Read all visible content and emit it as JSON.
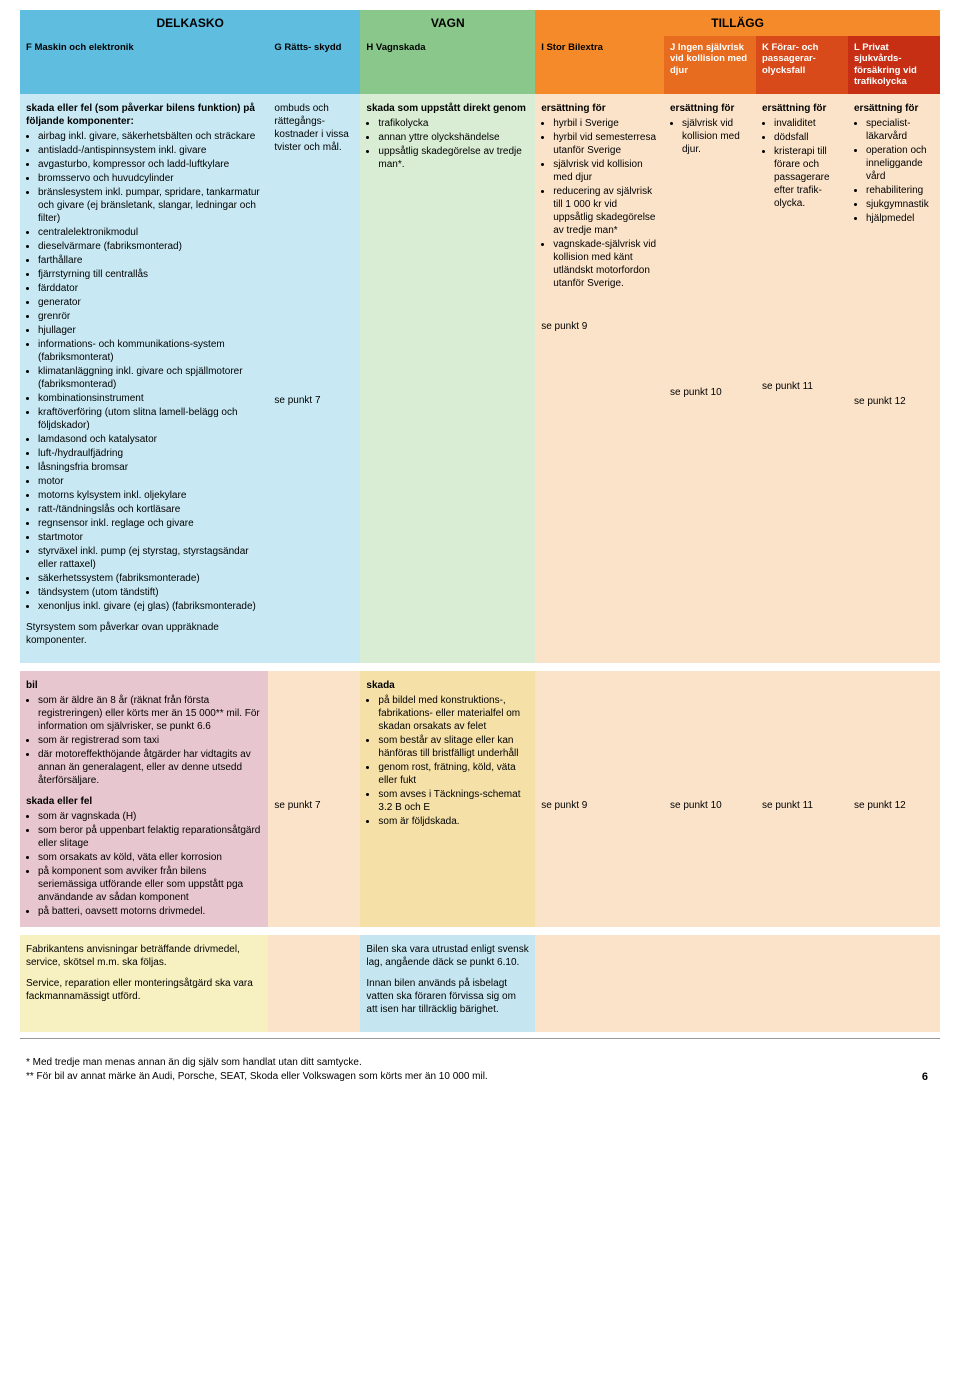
{
  "colors": {
    "delkasko_hdr": "#5fbde0",
    "delkasko_body": "#c8e9f4",
    "vagn_hdr": "#8ac78a",
    "vagn_body": "#d9ecd4",
    "tillagg_hdr": "#f58a2a",
    "tillagg_body": "#fbe3c9",
    "sub_F": "#5fbde0",
    "sub_G": "#5fbde0",
    "sub_H": "#8ac78a",
    "sub_I": "#f58a2a",
    "sub_J": "#e86c1f",
    "sub_K": "#d94a1a",
    "sub_L": "#c72f15",
    "row2_F": "#e8c6d0",
    "row2_H": "#f5e0a8",
    "row2_other": "#fbe3c9",
    "row3_F": "#f7f0c0",
    "row3_H": "#c5e6f0",
    "row3_other": "#fbe3c9",
    "sub_white_text": "#ffffff"
  },
  "topHeaders": {
    "delkasko": "DELKASKO",
    "vagn": "VAGN",
    "tillagg": "TILLÄGG"
  },
  "sub": {
    "F": "F Maskin och elektronik",
    "G": "G Rätts-\nskydd",
    "H": "H Vagnskada",
    "I": "I Stor Bilextra",
    "J": "J Ingen självrisk vid kollision med djur",
    "K": "K Förar- och passagerar-\nolycksfall",
    "L": "L Privat sjukvårds-\nförsäkring vid trafikolycka"
  },
  "row1": {
    "F": {
      "lead": "skada eller fel (som påverkar bilens funktion) på följande komponenter:",
      "items": [
        "airbag inkl. givare, säkerhetsbälten och sträckare",
        "antisladd-/antispinnsystem inkl. givare",
        "avgasturbo, kompressor och ladd-luftkylare",
        "bromsservo och huvudcylinder",
        "bränslesystem inkl. pumpar, spridare, tankarmatur och givare (ej bränsletank, slangar, ledningar och filter)",
        "centralelektronikmodul",
        "dieselvärmare (fabriksmonterad)",
        "farthållare",
        "fjärrstyrning till centrallås",
        "färddator",
        "generator",
        "grenrör",
        "hjullager",
        "informations- och kommunikations-system (fabriksmonterat)",
        "klimatanläggning inkl. givare och spjällmotorer (fabriksmonterad)",
        "kombinationsinstrument",
        "kraftöverföring (utom slitna lamell-belägg och följdskador)",
        "lamdasond och katalysator",
        "luft-/hydraulfjädring",
        "låsningsfria bromsar",
        "motor",
        "motorns kylsystem inkl. oljekylare",
        "ratt-/tändningslås och kortläsare",
        "regnsensor inkl. reglage och givare",
        "startmotor",
        "styrväxel inkl. pump (ej styrstag, styrstagsändar eller rattaxel)",
        "säkerhetssystem (fabriksmonterade)",
        "tändsystem (utom tändstift)",
        "xenonljus inkl. givare (ej glas) (fabriksmonterade)"
      ],
      "trail": "Styrsystem som påverkar ovan uppräknade komponenter."
    },
    "G": {
      "text": "ombuds och rättegångs-kostnader i vissa tvister och mål.",
      "see": "se punkt 7"
    },
    "H": {
      "lead": "skada som uppstått direkt genom",
      "items": [
        "trafikolycka",
        "annan yttre olyckshändelse",
        "uppsåtlig skadegörelse av tredje man*."
      ]
    },
    "I": {
      "lead": "ersättning för",
      "items": [
        "hyrbil i Sverige",
        "hyrbil vid semesterresa utanför Sverige",
        "självrisk vid kollision med djur",
        "reducering av självrisk till 1 000 kr vid uppsåtlig skadegörelse av tredje man*",
        "vagnskade-självrisk vid kollision med känt utländskt motorfordon utanför Sverige."
      ],
      "see": "se punkt 9"
    },
    "J": {
      "lead": "ersättning för",
      "items": [
        "självrisk vid kollision med djur."
      ],
      "see": "se punkt 10"
    },
    "K": {
      "lead": "ersättning för",
      "items": [
        "invaliditet",
        "dödsfall",
        "kristerapi till förare och passagerare efter trafik-olycka."
      ],
      "see": "se punkt 11"
    },
    "L": {
      "lead": "ersättning för",
      "items": [
        "specialist-läkarvård",
        "operation och inneliggande vård",
        "rehabilitering",
        "sjukgymnastik",
        "hjälpmedel"
      ],
      "see": "se punkt 12"
    }
  },
  "row2": {
    "F": {
      "lead1": "bil",
      "items1": [
        "som är äldre än 8 år (räknat från första registreringen) eller körts mer än 15 000** mil. För information om självrisker, se punkt 6.6",
        "som är registrerad som taxi",
        "där motoreffekthöjande åtgärder har vidtagits av annan än generalagent, eller av denne utsedd återförsäljare."
      ],
      "lead2": "skada eller fel",
      "items2": [
        "som är vagnskada (H)",
        "som beror på uppenbart felaktig reparationsåtgärd eller slitage",
        "som orsakats av köld, väta eller korrosion",
        "på komponent som avviker från bilens seriemässiga utförande eller som uppstått pga användande av sådan komponent",
        "på batteri, oavsett motorns drivmedel."
      ]
    },
    "G": {
      "see": "se punkt 7"
    },
    "H": {
      "lead": "skada",
      "items": [
        "på bildel med konstruktions-, fabrikations- eller materialfel om skadan orsakats av felet",
        "som består av slitage eller kan hänföras till bristfälligt underhåll",
        "genom rost, frätning, köld, väta eller fukt",
        "som avses i Täcknings-schemat 3.2 B och E",
        "som är följdskada."
      ]
    },
    "I": {
      "see": "se punkt 9"
    },
    "J": {
      "see": "se punkt 10"
    },
    "K": {
      "see": "se punkt 11"
    },
    "L": {
      "see": "se punkt 12"
    }
  },
  "row3": {
    "F": {
      "p1": "Fabrikantens anvisningar beträffande drivmedel, service, skötsel m.m. ska följas.",
      "p2": "Service, reparation eller monteringsåtgärd ska vara fackmannamässigt utförd."
    },
    "H": {
      "p1": "Bilen ska vara utrustad enligt svensk lag, angående däck se punkt 6.10.",
      "p2": "Innan bilen används på isbelagt vatten ska föraren förvissa sig om att isen har tillräcklig bärighet."
    }
  },
  "footnotes": {
    "a": "*  Med tredje man menas annan än dig själv som handlat utan ditt samtycke.",
    "b": "** För bil av annat märke än Audi, Porsche, SEAT, Skoda eller Volkswagen som körts mer än 10 000 mil."
  },
  "pagenum": "6"
}
